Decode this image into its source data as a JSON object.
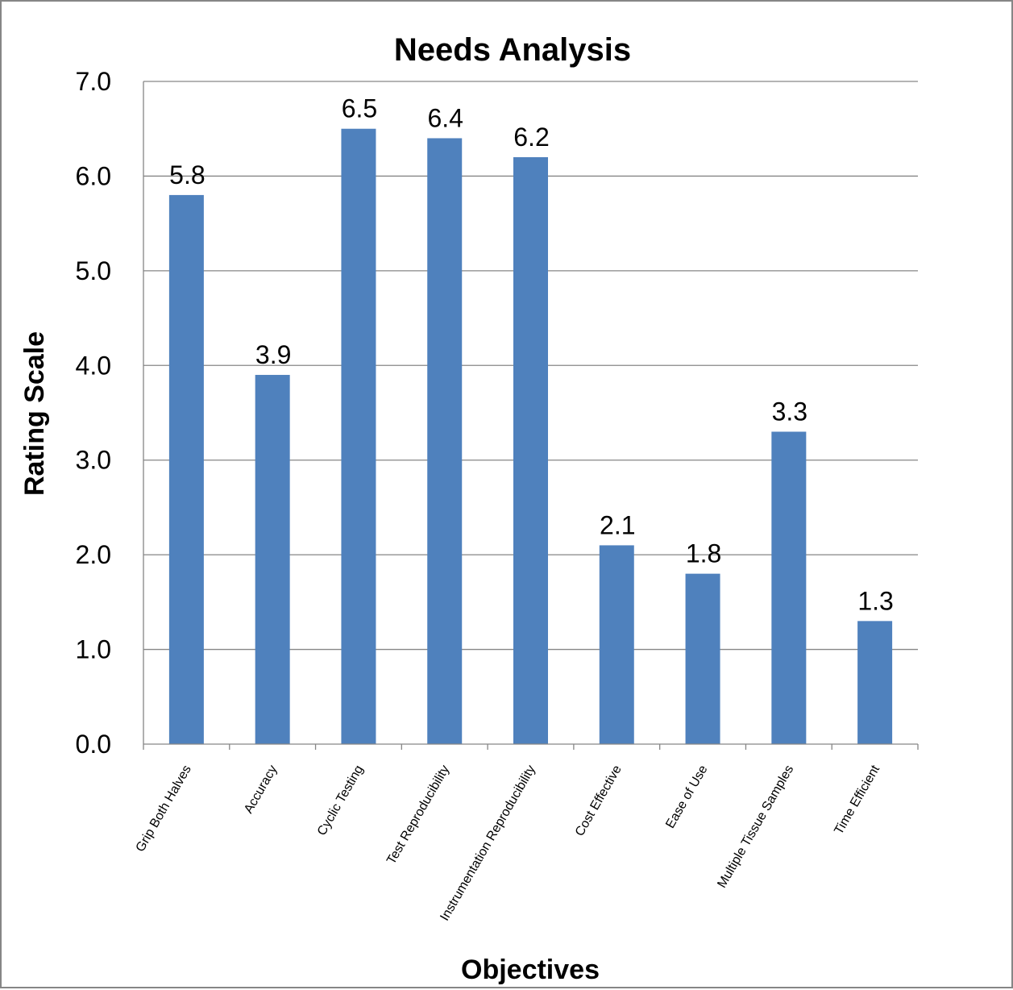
{
  "chart_data": {
    "type": "bar",
    "title": "Needs Analysis",
    "xlabel": "Objectives",
    "ylabel": "Rating Scale",
    "categories": [
      "Grip Both Halves",
      "Accuracy",
      "Cyclic Testing",
      "Test Reproducibility",
      "Instrumentation Reproducibility",
      "Cost Effective",
      "Ease of Use",
      "Multiple Tissue Samples",
      "Time Efficient"
    ],
    "values": [
      5.8,
      3.9,
      6.5,
      6.4,
      6.2,
      2.1,
      1.8,
      3.3,
      1.3
    ],
    "data_labels": [
      "5.8",
      "3.9",
      "6.5",
      "6.4",
      "6.2",
      "2.1",
      "1.8",
      "3.3",
      "1.3"
    ],
    "ylim": [
      0,
      7
    ],
    "yticks": [
      "0.0",
      "1.0",
      "2.0",
      "3.0",
      "4.0",
      "5.0",
      "6.0",
      "7.0"
    ],
    "grid": true,
    "legend": "none",
    "colors": {
      "bar": "#4f81bd",
      "grid": "#868686",
      "frame": "#868686"
    }
  }
}
